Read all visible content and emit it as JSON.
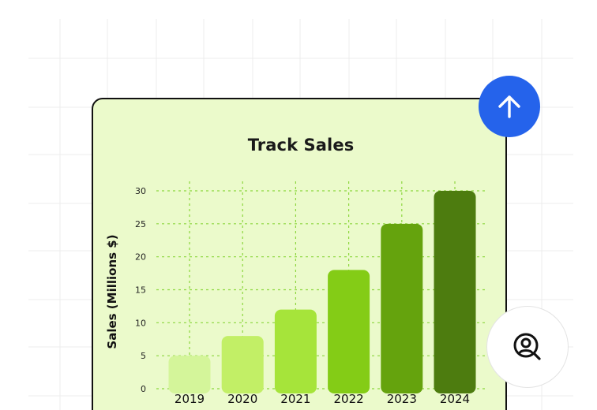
{
  "theme": {
    "card_background": "#ebfacb",
    "card_border": "#111111",
    "accent_button": "#2563eb",
    "grid_line": "#8bd63c",
    "bar_colors": [
      "#d4f59a",
      "#c2ef66",
      "#a6e43a",
      "#84cc16",
      "#65a30d",
      "#4d7c0f"
    ]
  },
  "icons": {
    "upload_button_icon": "arrow-up-icon",
    "profile_button_icon": "user-search-icon"
  },
  "chart_data": {
    "type": "bar",
    "title": "Track Sales",
    "xlabel": "",
    "ylabel": "Sales (Millions $)",
    "categories": [
      "2019",
      "2020",
      "2021",
      "2022",
      "2023",
      "2024"
    ],
    "values": [
      5,
      8,
      12,
      18,
      25,
      30
    ],
    "ylim": [
      0,
      30
    ],
    "yticks": [
      0,
      5,
      10,
      15,
      20,
      25,
      30
    ],
    "grid": true,
    "grid_style": "dotted"
  }
}
